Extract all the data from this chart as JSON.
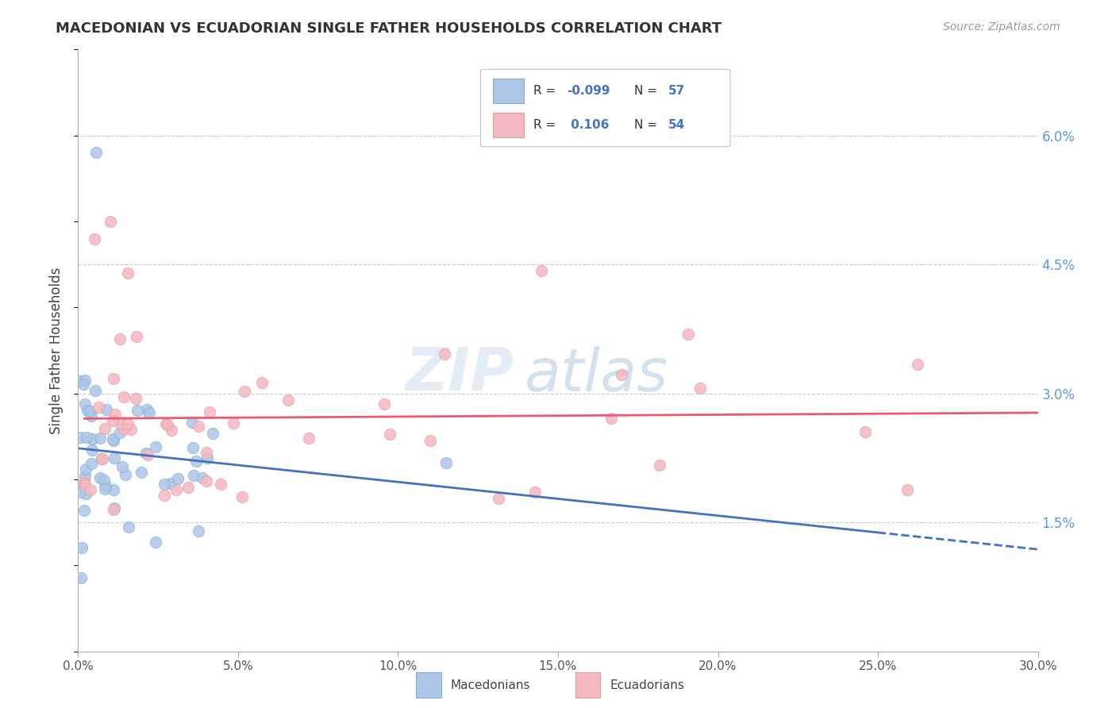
{
  "title": "MACEDONIAN VS ECUADORIAN SINGLE FATHER HOUSEHOLDS CORRELATION CHART",
  "source": "Source: ZipAtlas.com",
  "ylabel": "Single Father Households",
  "ytick_vals": [
    1.5,
    3.0,
    4.5,
    6.0
  ],
  "xlim": [
    0.0,
    30.0
  ],
  "ylim": [
    0.0,
    7.0
  ],
  "legend_r_blue": "-0.099",
  "legend_n_blue": "57",
  "legend_r_pink": "0.106",
  "legend_n_pink": "54",
  "blue_scatter_color": "#aec6e8",
  "blue_scatter_edge": "#7ab0d4",
  "pink_scatter_color": "#f4b8c0",
  "pink_scatter_edge": "#e89aa0",
  "blue_line_color": "#4472c4",
  "pink_line_color": "#e85d6e",
  "grid_color": "#cccccc",
  "text_color": "#333333",
  "axis_color": "#aaaaaa",
  "right_tick_color": "#5b9bd5"
}
